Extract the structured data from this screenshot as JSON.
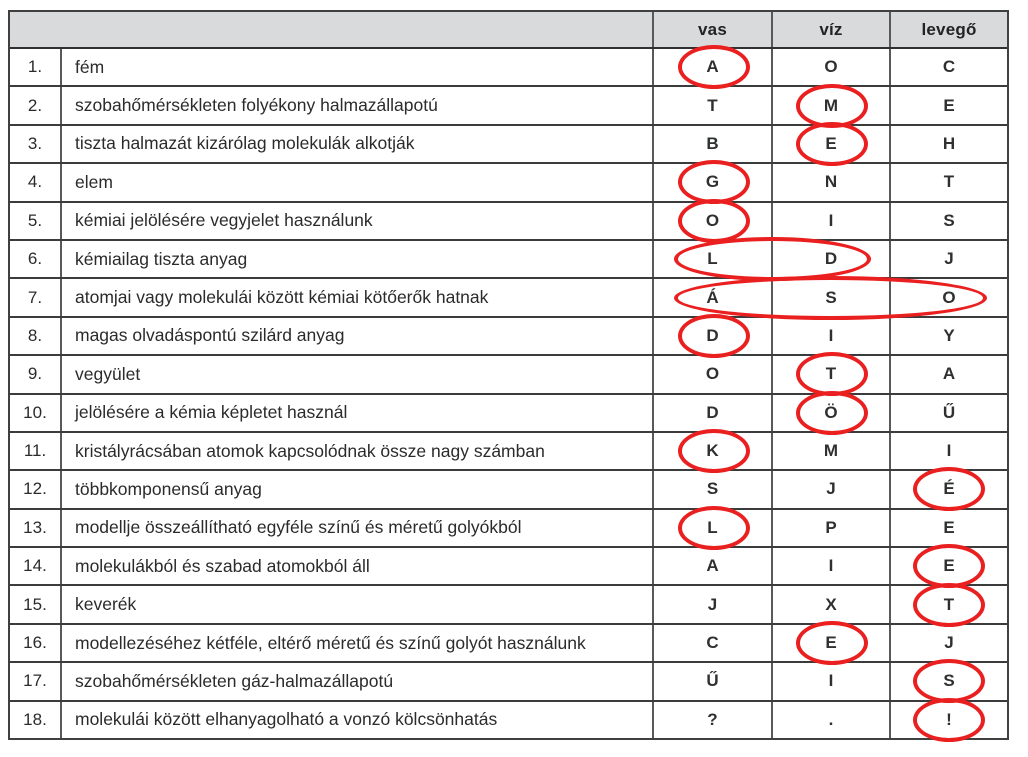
{
  "colors": {
    "annotation_red": "#e9201f",
    "header_bg": "#d9dadc",
    "grid_line": "#3b3b3c",
    "text": "#2b2b2c"
  },
  "table": {
    "corner_label": "",
    "columns": [
      "vas",
      "víz",
      "levegő"
    ],
    "rows": [
      {
        "num": "1.",
        "description": "fém",
        "letters": [
          "A",
          "O",
          "C"
        ],
        "circled": [
          0
        ]
      },
      {
        "num": "2.",
        "description": "szobahőmérsékleten folyékony halmazállapotú",
        "letters": [
          "T",
          "M",
          "E"
        ],
        "circled": [
          1
        ]
      },
      {
        "num": "3.",
        "description": "tiszta halmazát kizárólag molekulák alkotják",
        "letters": [
          "B",
          "E",
          "H"
        ],
        "circled": [
          1
        ]
      },
      {
        "num": "4.",
        "description": "elem",
        "letters": [
          "G",
          "N",
          "T"
        ],
        "circled": [
          0
        ]
      },
      {
        "num": "5.",
        "description": "kémiai jelölésére vegyjelet használunk",
        "letters": [
          "O",
          "I",
          "S"
        ],
        "circled": [
          0
        ]
      },
      {
        "num": "6.",
        "description": "kémiailag tiszta anyag",
        "letters": [
          "L",
          "D",
          "J"
        ],
        "circled": [
          0,
          1
        ]
      },
      {
        "num": "7.",
        "description": "atomjai vagy molekulái között kémiai kötőerők hatnak",
        "letters": [
          "Á",
          "S",
          "O"
        ],
        "circled": [
          0,
          1,
          2
        ]
      },
      {
        "num": "8.",
        "description": "magas olvadáspontú szilárd anyag",
        "letters": [
          "D",
          "I",
          "Y"
        ],
        "circled": [
          0
        ]
      },
      {
        "num": "9.",
        "description": "vegyület",
        "letters": [
          "O",
          "T",
          "A"
        ],
        "circled": [
          1
        ]
      },
      {
        "num": "10.",
        "description": "jelölésére a kémia képletet használ",
        "letters": [
          "D",
          "Ö",
          "Ű"
        ],
        "circled": [
          1
        ]
      },
      {
        "num": "11.",
        "description": "kristályrácsában atomok kapcsolódnak össze nagy számban",
        "letters": [
          "K",
          "M",
          "I"
        ],
        "circled": [
          0
        ]
      },
      {
        "num": "12.",
        "description": "többkomponensű anyag",
        "letters": [
          "S",
          "J",
          "É"
        ],
        "circled": [
          2
        ]
      },
      {
        "num": "13.",
        "description": "modellje összeállítható egyféle színű és méretű golyókból",
        "letters": [
          "L",
          "P",
          "E"
        ],
        "circled": [
          0
        ]
      },
      {
        "num": "14.",
        "description": "molekulákból és szabad atomokból áll",
        "letters": [
          "A",
          "I",
          "E"
        ],
        "circled": [
          2
        ]
      },
      {
        "num": "15.",
        "description": "keverék",
        "letters": [
          "J",
          "X",
          "T"
        ],
        "circled": [
          2
        ]
      },
      {
        "num": "16.",
        "description": "modellezéséhez kétféle, eltérő méretű és színű golyót használunk",
        "letters": [
          "C",
          "E",
          "J"
        ],
        "circled": [
          1
        ]
      },
      {
        "num": "17.",
        "description": "szobahőmérsékleten gáz-halmazállapotú",
        "letters": [
          "Ű",
          "I",
          "S"
        ],
        "circled": [
          2
        ]
      },
      {
        "num": "18.",
        "description": "molekulái között elhanyagolható a vonzó kölcsönhatás",
        "letters": [
          "?",
          ".",
          "!"
        ],
        "circled": [
          2
        ]
      }
    ]
  }
}
